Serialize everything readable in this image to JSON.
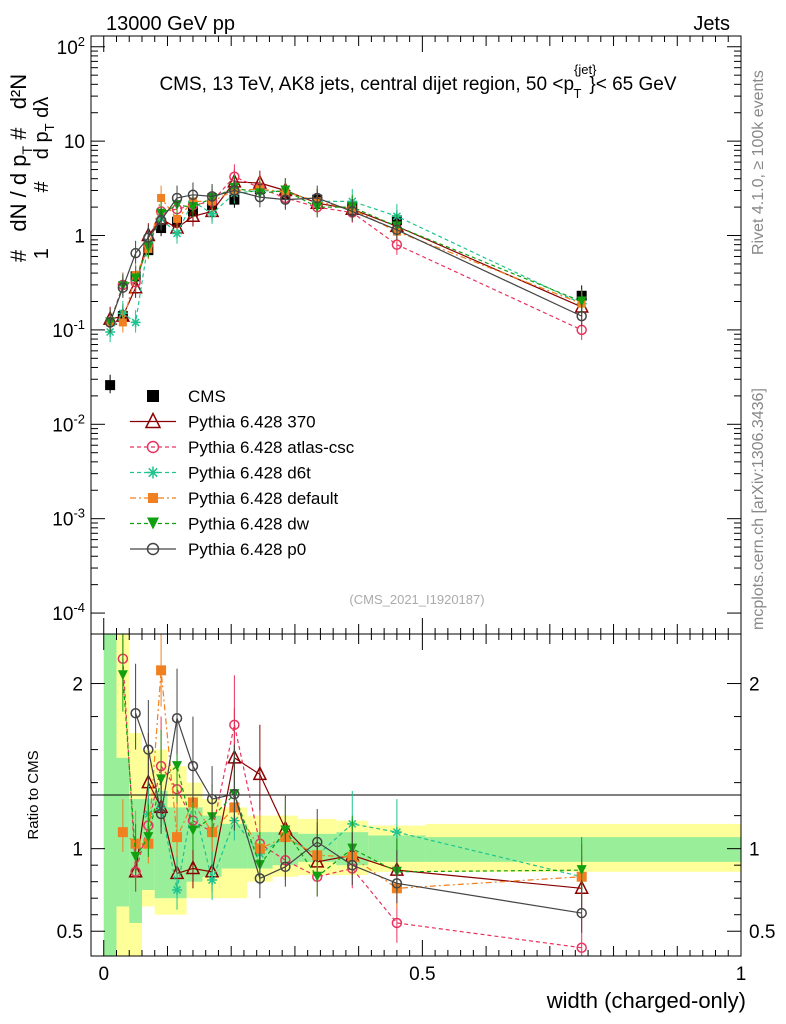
{
  "header": {
    "energy_label": "13000 GeV pp",
    "category_label": "Jets"
  },
  "side_text": {
    "rivet": "Rivet 4.1.0, ≥ 100k events",
    "mcplots": "mcplots.cern.ch [arXiv:1306.3436]"
  },
  "chart_data": [
    {
      "type": "line",
      "panel": "main",
      "title": "CMS, 13 TeV, AK8 jets, central dijet region, 50 < p_T^{jet} < 65 GeV",
      "ylabel": "1/dN/dp_T · d²N/dp_T dλ",
      "yscale": "log",
      "ylim": [
        6e-05,
        130
      ],
      "xlim": [
        -0.02,
        1.0
      ],
      "watermark": "(CMS_2021_I1920187)",
      "y_tick_labels": [
        "10^-4",
        "10^-3",
        "10^-2",
        "10^-1",
        "1",
        "10",
        "10^2"
      ],
      "x": [
        0.01,
        0.03,
        0.05,
        0.07,
        0.09,
        0.115,
        0.14,
        0.17,
        0.205,
        0.245,
        0.285,
        0.335,
        0.39,
        0.46,
        0.75
      ],
      "series": [
        {
          "name": "CMS",
          "color": "#000000",
          "marker": "square",
          "dash": "none",
          "show_line": false,
          "values": [
            0.026,
            0.14,
            0.37,
            0.7,
            1.2,
            1.4,
            1.8,
            2.1,
            2.4,
            3.1,
            2.7,
            2.4,
            2.0,
            1.45,
            0.23
          ]
        },
        {
          "name": "Pythia 6.428 370",
          "color": "#8b0000",
          "marker": "triangle-open",
          "dash": "none",
          "show_line": true,
          "values": [
            0.13,
            0.14,
            0.28,
            1.0,
            1.5,
            1.2,
            1.6,
            1.8,
            3.7,
            3.6,
            3.0,
            2.2,
            1.9,
            1.25,
            0.175
          ]
        },
        {
          "name": "Pythia 6.428 atlas-csc",
          "color": "#e8335f",
          "marker": "circle-open",
          "dash": "4,3",
          "show_line": true,
          "values": [
            0.12,
            0.3,
            0.32,
            0.8,
            1.8,
            1.9,
            2.1,
            2.3,
            4.2,
            3.2,
            2.5,
            2.0,
            1.75,
            0.8,
            0.1
          ]
        },
        {
          "name": "Pythia 6.428 d6t",
          "color": "#1fc48f",
          "marker": "star",
          "dash": "4,3",
          "show_line": true,
          "values": [
            0.095,
            0.15,
            0.12,
            0.85,
            1.5,
            1.05,
            2.3,
            1.7,
            2.8,
            3.0,
            2.9,
            2.3,
            2.3,
            1.6,
            0.19
          ]
        },
        {
          "name": "Pythia 6.428 default",
          "color": "#f08020",
          "marker": "square",
          "dash": "6,3,2,3",
          "show_line": true,
          "values": [
            0.12,
            0.12,
            0.38,
            0.72,
            2.5,
            1.5,
            2.3,
            2.3,
            3.0,
            3.1,
            2.9,
            2.3,
            1.9,
            1.1,
            0.19
          ]
        },
        {
          "name": "Pythia 6.428 dw",
          "color": "#10a010",
          "marker": "triangle-down",
          "dash": "4,3",
          "show_line": true,
          "values": [
            0.12,
            0.29,
            0.35,
            0.75,
            1.7,
            2.1,
            2.0,
            2.5,
            3.2,
            2.8,
            3.0,
            2.0,
            2.0,
            1.25,
            0.2
          ]
        },
        {
          "name": "Pythia 6.428 p0",
          "color": "#444444",
          "marker": "circle-open",
          "dash": "none",
          "show_line": true,
          "values": [
            0.12,
            0.28,
            0.65,
            0.95,
            1.45,
            2.5,
            2.7,
            2.6,
            3.0,
            2.55,
            2.4,
            2.5,
            1.8,
            1.15,
            0.14
          ]
        }
      ]
    },
    {
      "type": "line",
      "panel": "ratio",
      "ylabel": "Ratio to CMS",
      "xlabel": "width (charged-only)",
      "ylim": [
        0.35,
        2.3
      ],
      "xlim": [
        -0.02,
        1.0
      ],
      "y_tick_labels": [
        "0.5",
        "1",
        "2"
      ],
      "x_tick_labels": [
        "0",
        "0.5",
        "1"
      ],
      "x": [
        0.01,
        0.03,
        0.05,
        0.07,
        0.09,
        0.115,
        0.14,
        0.17,
        0.205,
        0.245,
        0.285,
        0.335,
        0.39,
        0.46,
        0.75
      ],
      "series": [
        {
          "name": "Pythia 6.428 370",
          "values": [
            null,
            null,
            0.86,
            1.4,
            1.25,
            0.85,
            0.88,
            0.86,
            1.55,
            1.45,
            1.12,
            0.92,
            0.96,
            0.87,
            0.76
          ]
        },
        {
          "name": "Pythia 6.428 atlas-csc",
          "values": [
            null,
            2.15,
            0.86,
            1.14,
            1.5,
            1.36,
            1.17,
            1.1,
            1.75,
            1.03,
            0.93,
            0.83,
            0.88,
            0.55,
            0.4
          ]
        },
        {
          "name": "Pythia 6.428 d6t",
          "values": [
            null,
            null,
            null,
            1.21,
            1.25,
            0.75,
            1.28,
            0.81,
            1.17,
            0.97,
            1.07,
            0.96,
            1.15,
            1.1,
            0.83
          ]
        },
        {
          "name": "Pythia 6.428 default",
          "values": [
            null,
            1.1,
            1.03,
            1.03,
            2.08,
            1.07,
            1.28,
            1.1,
            1.25,
            1.0,
            1.07,
            0.96,
            0.95,
            0.76,
            0.83
          ]
        },
        {
          "name": "Pythia 6.428 dw",
          "values": [
            null,
            2.05,
            0.95,
            1.07,
            1.42,
            1.5,
            1.11,
            1.19,
            1.33,
            0.9,
            1.11,
            0.83,
            1.0,
            0.86,
            0.87
          ]
        },
        {
          "name": "Pythia 6.428 p0",
          "values": [
            null,
            null,
            1.82,
            1.6,
            1.21,
            1.79,
            1.5,
            1.3,
            1.33,
            0.82,
            0.89,
            1.04,
            0.9,
            0.79,
            0.61
          ]
        }
      ],
      "band_edges": [
        0.0,
        0.02,
        0.04,
        0.06,
        0.08,
        0.1,
        0.13,
        0.155,
        0.185,
        0.225,
        0.265,
        0.305,
        0.365,
        0.415,
        0.505,
        1.0
      ],
      "band_inner": [
        [
          0.3,
          2.3
        ],
        [
          0.65,
          1.55
        ],
        [
          0.55,
          1.3
        ],
        [
          0.75,
          1.3
        ],
        [
          0.7,
          1.35
        ],
        [
          0.7,
          1.25
        ],
        [
          0.8,
          1.25
        ],
        [
          0.83,
          1.2
        ],
        [
          0.88,
          1.15
        ],
        [
          0.88,
          1.1
        ],
        [
          0.9,
          1.1
        ],
        [
          0.92,
          1.09
        ],
        [
          0.9,
          1.1
        ],
        [
          0.92,
          1.08
        ],
        [
          0.92,
          1.07
        ]
      ],
      "band_outer": [
        [
          0.3,
          2.3
        ],
        [
          0.3,
          2.3
        ],
        [
          0.35,
          1.7
        ],
        [
          0.65,
          1.6
        ],
        [
          0.6,
          1.6
        ],
        [
          0.6,
          1.5
        ],
        [
          0.7,
          1.4
        ],
        [
          0.7,
          1.3
        ],
        [
          0.7,
          1.25
        ],
        [
          0.8,
          1.2
        ],
        [
          0.83,
          1.2
        ],
        [
          0.84,
          1.18
        ],
        [
          0.84,
          1.17
        ],
        [
          0.86,
          1.14
        ],
        [
          0.86,
          1.15
        ]
      ]
    }
  ]
}
